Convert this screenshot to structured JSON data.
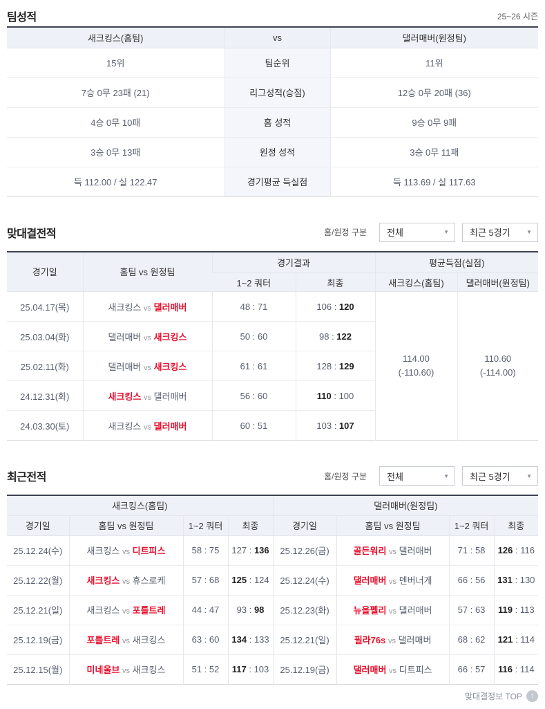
{
  "labels": {
    "vs": "vs"
  },
  "colors": {
    "accent_red": "#e8102d",
    "header_bg": "#eff1f9",
    "winner_score": "#222222",
    "table_top_border": "#3e4350"
  },
  "team_stats": {
    "title": "팀성적",
    "season": "25~26 시즌",
    "header": {
      "home": "새크킹스(홈팀)",
      "vs": "vs",
      "away": "댈러매버(원정팀)"
    },
    "rows": [
      {
        "home": "15위",
        "label": "팀순위",
        "away": "11위"
      },
      {
        "home": "7승 0무 23패 (21)",
        "label": "리그성적(승점)",
        "away": "12승 0무 20패 (36)"
      },
      {
        "home": "4승 0무 10패",
        "label": "홈 성적",
        "away": "9승 0무 9패"
      },
      {
        "home": "3승 0무 13패",
        "label": "원정 성적",
        "away": "3승 0무 11패"
      },
      {
        "home": "득 112.00 / 실 122.47",
        "label": "경기평균 득실점",
        "away": "득 113.69 / 실 117.63"
      }
    ]
  },
  "head_to_head": {
    "title": "맞대결전적",
    "filter_label": "홈/원정 구분",
    "filters": [
      "전체",
      "최근 5경기"
    ],
    "columns": {
      "date": "경기일",
      "matchup": "홈팀 vs 원정팀",
      "result_group": "경기결과",
      "q12": "1~2 쿼터",
      "final": "최종",
      "avg_group": "평균득점(실점)",
      "avg_home": "새크킹스(홈팀)",
      "avg_away": "댈러매버(원정팀)"
    },
    "rows": [
      {
        "date": "25.04.17(목)",
        "home": "새크킹스",
        "away": "댈러매버",
        "winner": "away",
        "q12": [
          "48",
          "71"
        ],
        "final": [
          "106",
          "120"
        ]
      },
      {
        "date": "25.03.04(화)",
        "home": "댈러매버",
        "away": "새크킹스",
        "winner": "away",
        "q12": [
          "50",
          "60"
        ],
        "final": [
          "98",
          "122"
        ]
      },
      {
        "date": "25.02.11(화)",
        "home": "댈러매버",
        "away": "새크킹스",
        "winner": "away",
        "q12": [
          "61",
          "61"
        ],
        "final": [
          "128",
          "129"
        ]
      },
      {
        "date": "24.12.31(화)",
        "home": "새크킹스",
        "away": "댈러매버",
        "winner": "home",
        "q12": [
          "56",
          "60"
        ],
        "final": [
          "110",
          "100"
        ]
      },
      {
        "date": "24.03.30(토)",
        "home": "새크킹스",
        "away": "댈러매버",
        "winner": "away",
        "q12": [
          "60",
          "51"
        ],
        "final": [
          "103",
          "107"
        ]
      }
    ],
    "averages": {
      "home": [
        "114.00",
        "(-110.60)"
      ],
      "away": [
        "110.60",
        "(-114.00)"
      ]
    }
  },
  "recent": {
    "title": "최근전적",
    "filter_label": "홈/원정 구분",
    "filters": [
      "전체",
      "최근 5경기"
    ],
    "columns": {
      "date": "경기일",
      "matchup": "홈팀 vs 원정팀",
      "q12": "1~2 쿼터",
      "final": "최종"
    },
    "left": {
      "team": "새크킹스(홈팀)",
      "rows": [
        {
          "date": "25.12.24(수)",
          "home": "새크킹스",
          "away": "디트피스",
          "winner": "away",
          "q12": [
            "58",
            "75"
          ],
          "final": [
            "127",
            "136"
          ]
        },
        {
          "date": "25.12.22(월)",
          "home": "새크킹스",
          "away": "휴스로케",
          "winner": "home",
          "q12": [
            "57",
            "68"
          ],
          "final": [
            "125",
            "124"
          ]
        },
        {
          "date": "25.12.21(일)",
          "home": "새크킹스",
          "away": "포틀트레",
          "winner": "away",
          "q12": [
            "44",
            "47"
          ],
          "final": [
            "93",
            "98"
          ]
        },
        {
          "date": "25.12.19(금)",
          "home": "포틀트레",
          "away": "새크킹스",
          "winner": "home",
          "q12": [
            "63",
            "60"
          ],
          "final": [
            "134",
            "133"
          ]
        },
        {
          "date": "25.12.15(월)",
          "home": "미네울브",
          "away": "새크킹스",
          "winner": "home",
          "q12": [
            "51",
            "52"
          ],
          "final": [
            "117",
            "103"
          ]
        }
      ]
    },
    "right": {
      "team": "댈러매버(원정팀)",
      "rows": [
        {
          "date": "25.12.26(금)",
          "home": "골든워리",
          "away": "댈러매버",
          "winner": "home",
          "q12": [
            "71",
            "58"
          ],
          "final": [
            "126",
            "116"
          ]
        },
        {
          "date": "25.12.24(수)",
          "home": "댈러매버",
          "away": "덴버너게",
          "winner": "home",
          "q12": [
            "66",
            "56"
          ],
          "final": [
            "131",
            "130"
          ]
        },
        {
          "date": "25.12.23(화)",
          "home": "뉴올펠리",
          "away": "댈러매버",
          "winner": "home",
          "q12": [
            "57",
            "63"
          ],
          "final": [
            "119",
            "113"
          ]
        },
        {
          "date": "25.12.21(일)",
          "home": "필라76s",
          "away": "댈러매버",
          "winner": "home",
          "q12": [
            "68",
            "62"
          ],
          "final": [
            "121",
            "114"
          ]
        },
        {
          "date": "25.12.19(금)",
          "home": "댈러매버",
          "away": "디트피스",
          "winner": "home",
          "q12": [
            "66",
            "57"
          ],
          "final": [
            "116",
            "114"
          ]
        }
      ]
    }
  },
  "footer": {
    "label": "맞대결정보 TOP",
    "icon": "scroll-top-icon"
  }
}
